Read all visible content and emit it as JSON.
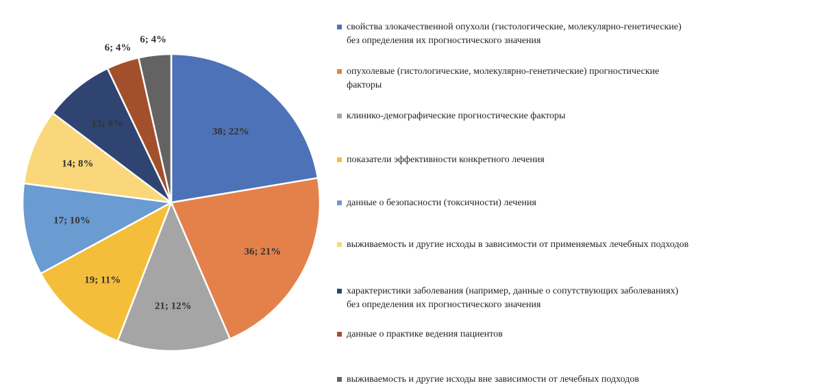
{
  "chart_data": {
    "type": "pie",
    "title": "",
    "legend_position": "right",
    "start": "12 o'clock, clockwise",
    "slices": [
      {
        "name": "свойства злокачественной опухоли (гистологические, молекулярно-генетические) без определения их прогностического значения",
        "value": 38,
        "label": "38; 22%",
        "color": "#4E72B8"
      },
      {
        "name": "опухолевые (гистологические, молекулярно-генетические) прогностические факторы",
        "value": 36,
        "label": "36; 21%",
        "color": "#E4814B"
      },
      {
        "name": "клинико-демографические прогностические факторы",
        "value": 21,
        "label": "21; 12%",
        "color": "#A5A5A5"
      },
      {
        "name": "показатели эффективности конкретного лечения",
        "value": 19,
        "label": "19; 11%",
        "color": "#F5BE3A"
      },
      {
        "name": "данные о безопасности (токсичности) лечения",
        "value": 17,
        "label": "17; 10%",
        "color": "#6A9BD1"
      },
      {
        "name": "выживаемость и другие исходы в зависимости от применяемых лечебных подходов",
        "value": 14,
        "label": "14; 8%",
        "color": "#F9D77A"
      },
      {
        "name": "характеристики заболевания (например, данные о сопутствующих заболеваниях) без определения их прогностического значения",
        "value": 13,
        "label": "13; 8%",
        "color": "#2F4470"
      },
      {
        "name": "данные о практике ведения пациентов",
        "value": 6,
        "label": "6; 4%",
        "color": "#A2502B"
      },
      {
        "name": "выживаемость и другие исходы вне зависимости от лечебных подходов",
        "value": 6,
        "label": "6; 4%",
        "color": "#636363"
      }
    ]
  },
  "legend": {
    "items": [
      "свойства злокачественной опухоли (гистологические, молекулярно-генетические)\nбез определения их прогностического значения",
      "опухолевые (гистологические, молекулярно-генетические) прогностические\nфакторы",
      "клинико-демографические прогностические факторы",
      "показатели эффективности конкретного лечения",
      "данные о безопасности (токсичности) лечения",
      "выживаемость и другие исходы в зависимости от применяемых лечебных подходов",
      "характеристики заболевания (например, данные о сопутствующих заболеваниях)\nбез определения их прогностического значения",
      "данные о практике ведения пациентов",
      "выживаемость и другие исходы вне зависимости от лечебных подходов"
    ]
  }
}
